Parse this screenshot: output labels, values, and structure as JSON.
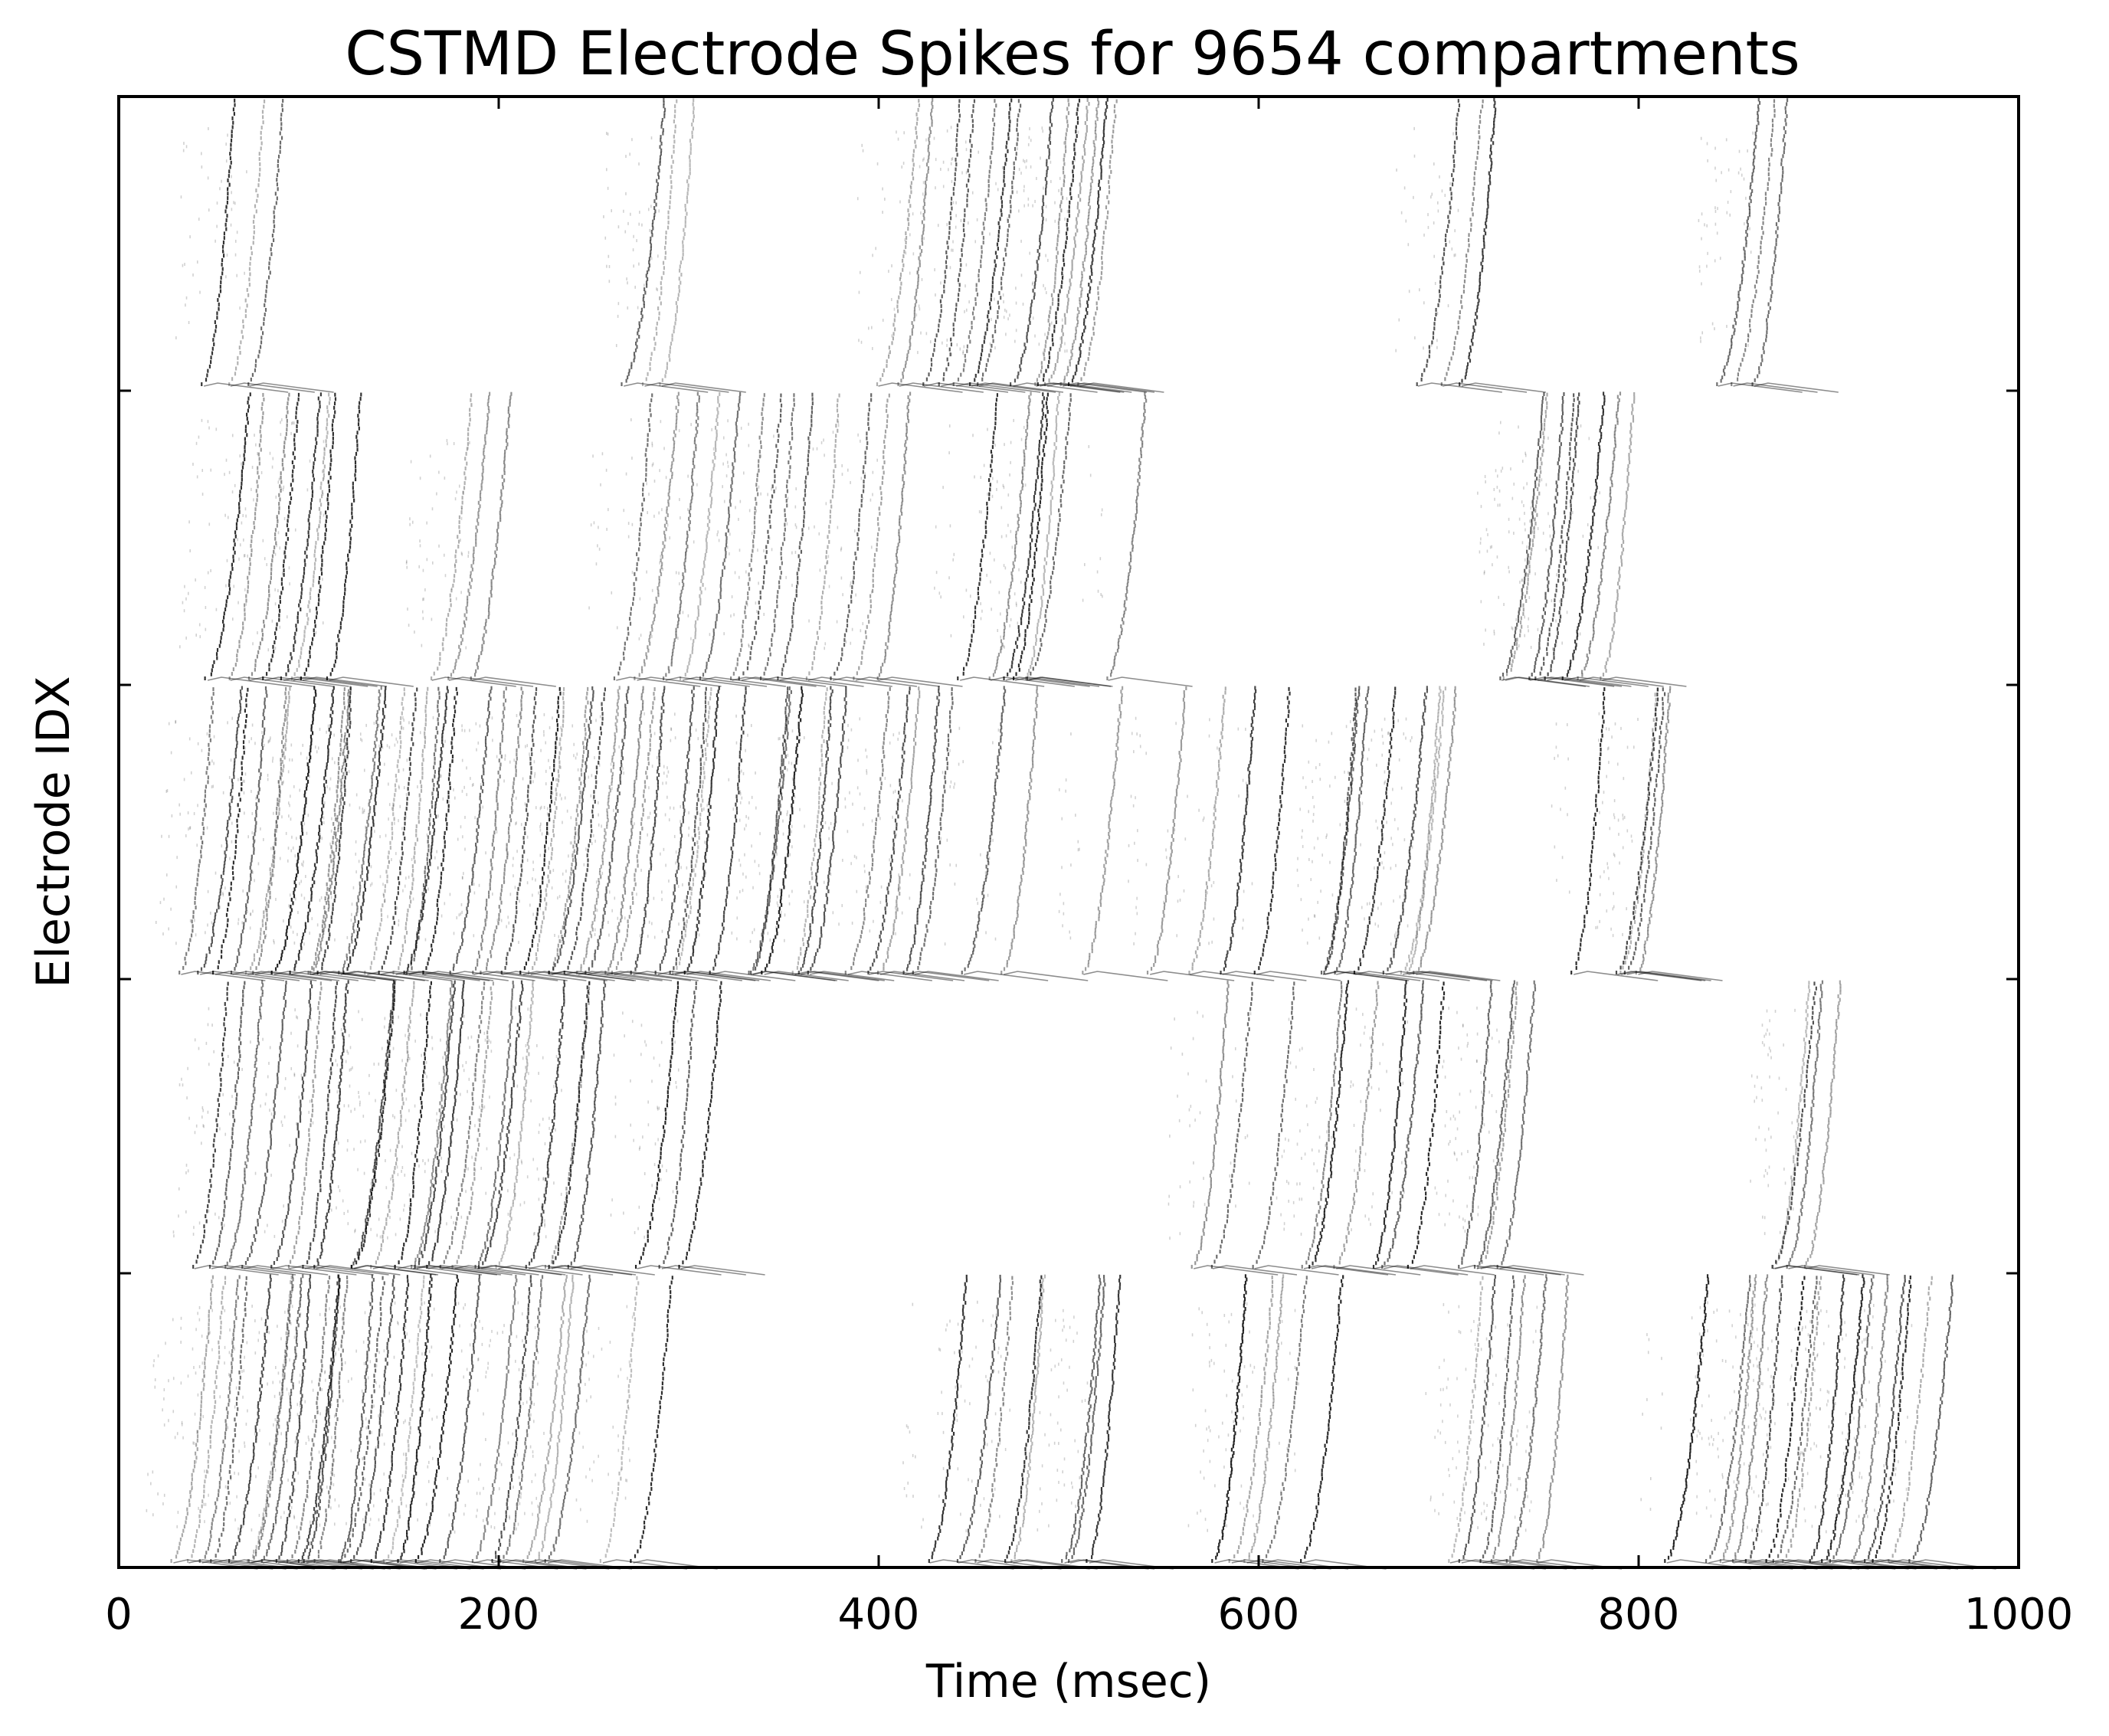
{
  "chart_data": {
    "type": "scatter",
    "title": "CSTMD Electrode Spikes for 9654 compartments",
    "xlabel": "Time (msec)",
    "ylabel": "Electrode IDX",
    "xlim": [
      0,
      1000
    ],
    "ylim": [
      0,
      5
    ],
    "x_ticks": [
      0,
      200,
      400,
      600,
      800,
      1000
    ],
    "x_tick_labels": [
      "0",
      "200",
      "400",
      "600",
      "800",
      "1000"
    ],
    "y_ticks": [
      1,
      2,
      3,
      4
    ],
    "y_tick_labels": [
      "",
      "",
      "",
      ""
    ],
    "grid": false,
    "legend": "none",
    "mark_color": "#000000",
    "spike_bursts": [
      {
        "electrode": 4,
        "onsets_msec": [
          44,
          58,
          68,
          265,
          276,
          285,
          399,
          410,
          423,
          432,
          440,
          448,
          452,
          470,
          482,
          484,
          488,
          496,
          500,
          505,
          683,
          696,
          706,
          841,
          849,
          860
        ]
      },
      {
        "electrode": 3,
        "onsets_msec": [
          46,
          58,
          68,
          76,
          86,
          91,
          96,
          110,
          164,
          173,
          185,
          261,
          272,
          287,
          296,
          306,
          322,
          327,
          338,
          347,
          362,
          375,
          387,
          399,
          442,
          458,
          466,
          471,
          477,
          478,
          520,
          727,
          729,
          742,
          746,
          751,
          760,
          768,
          780
        ]
      },
      {
        "electrode": 2,
        "onsets_msec": [
          32,
          42,
          50,
          59,
          67,
          71,
          81,
          90,
          100,
          101,
          105,
          116,
          118,
          130,
          137,
          150,
          145,
          152,
          160,
          174,
          191,
          186,
          201,
          212,
          216,
          226,
          227,
          234,
          241,
          246,
          256,
          260,
          270,
          283,
          290,
          292,
          298,
          311,
          333,
          332,
          339,
          355,
          358,
          363,
          383,
          394,
          400,
          413,
          418,
          444,
          465,
          507,
          542,
          563,
          580,
          598,
          633,
          634,
          640,
          650,
          666,
          675,
          678,
          682,
          765,
          788,
          790,
          793,
          799
        ]
      },
      {
        "electrode": 1,
        "onsets_msec": [
          39,
          48,
          56,
          65,
          80,
          89,
          97,
          103,
          122,
          123,
          133,
          146,
          154,
          156,
          162,
          169,
          176,
          188,
          190,
          199,
          215,
          225,
          227,
          237,
          272,
          285,
          295,
          565,
          575,
          597,
          623,
          627,
          640,
          660,
          665,
          679,
          705,
          714,
          716,
          726,
          870,
          871,
          878,
          887
        ]
      },
      {
        "electrode": 0,
        "onsets_msec": [
          28,
          36,
          43,
          49,
          58,
          68,
          69,
          75,
          83,
          89,
          95,
          98,
          103,
          117,
          116,
          122,
          133,
          140,
          147,
          156,
          169,
          186,
          196,
          201,
          213,
          219,
          225,
          254,
          270,
          426,
          441,
          451,
          466,
          470,
          497,
          500,
          510,
          576,
          585,
          593,
          602,
          622,
          700,
          706,
          717,
          722,
          731,
          746,
          814,
          836,
          843,
          849,
          857,
          867,
          871,
          876,
          890,
          897,
          901,
          912,
          919,
          923,
          931,
          943
        ]
      }
    ]
  }
}
